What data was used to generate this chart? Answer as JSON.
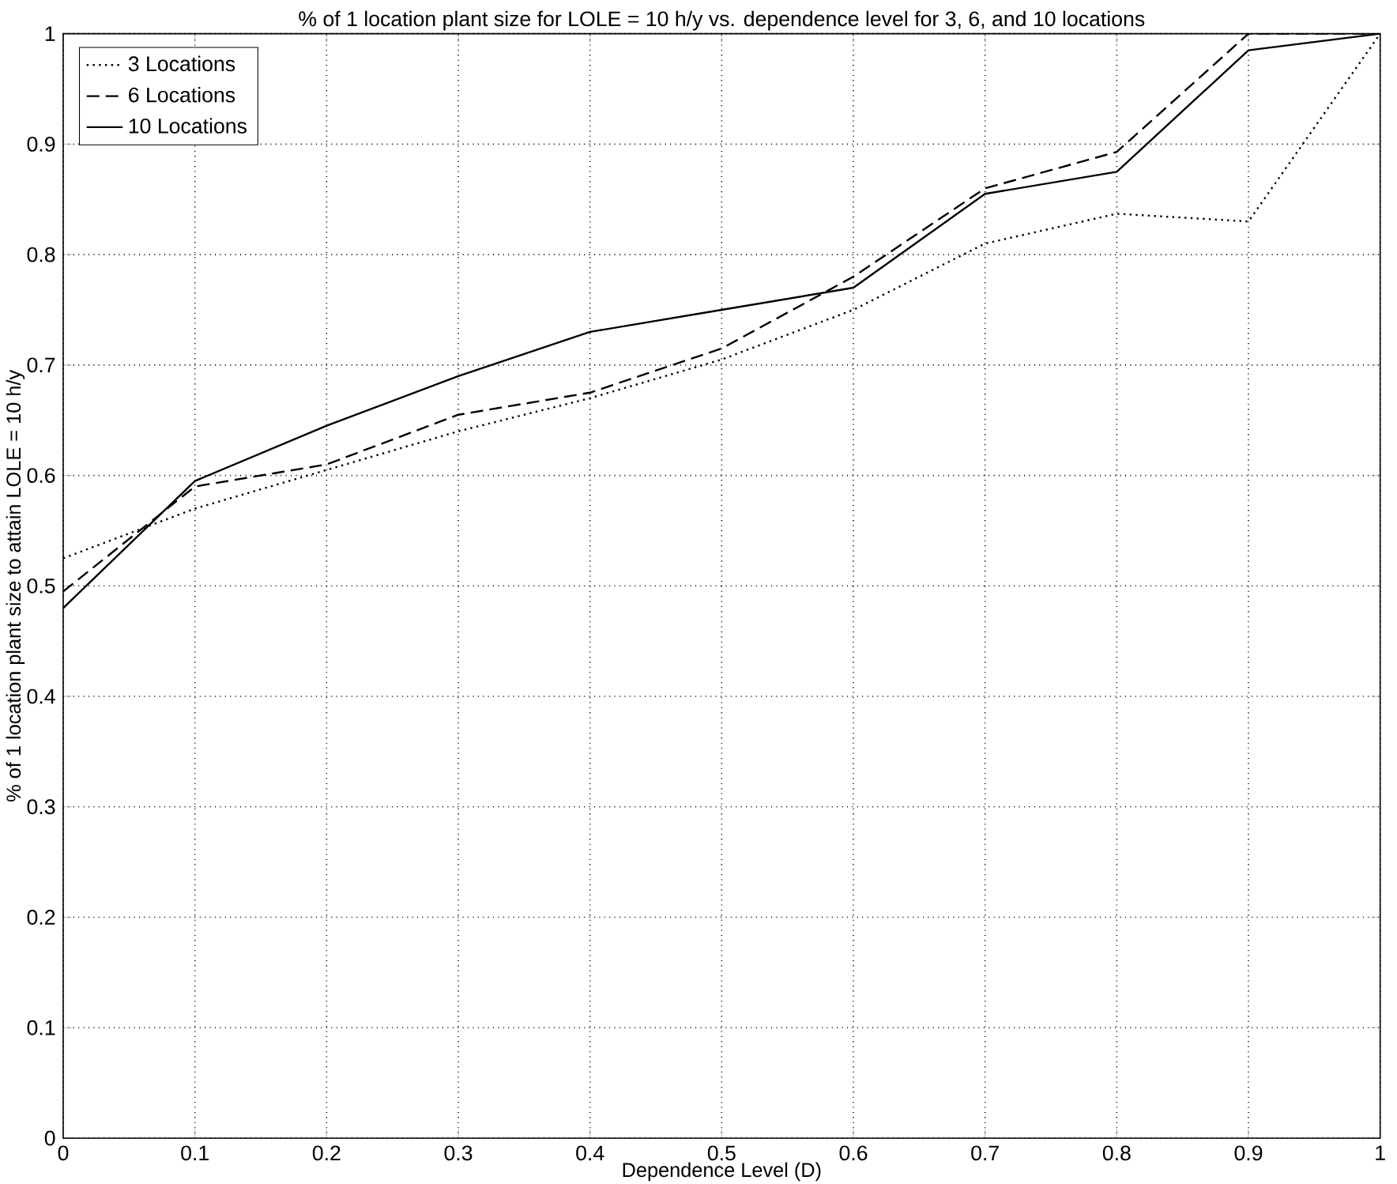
{
  "chart_data": {
    "type": "line",
    "title": "% of 1 location plant size for LOLE = 10 h/y vs. dependence level for 3, 6, and 10 locations",
    "xlabel": "Dependence Level (D)",
    "ylabel": "% of 1 location plant size to attain LOLE = 10 h/y",
    "x": [
      0,
      0.1,
      0.2,
      0.3,
      0.4,
      0.5,
      0.6,
      0.7,
      0.8,
      0.9,
      1.0
    ],
    "series": [
      {
        "name": "3 Locations",
        "color": "#000000",
        "line_style": "dotted",
        "values": [
          0.525,
          0.57,
          0.605,
          0.64,
          0.67,
          0.705,
          0.75,
          0.81,
          0.837,
          0.83,
          1.0
        ]
      },
      {
        "name": "6 Locations",
        "color": "#000000",
        "line_style": "dashed",
        "values": [
          0.495,
          0.59,
          0.61,
          0.655,
          0.675,
          0.715,
          0.78,
          0.86,
          0.893,
          1.0,
          1.0
        ]
      },
      {
        "name": "10 Locations",
        "color": "#000000",
        "line_style": "solid",
        "values": [
          0.48,
          0.595,
          0.645,
          0.69,
          0.73,
          0.75,
          0.77,
          0.855,
          0.875,
          0.985,
          1.0
        ]
      }
    ],
    "xlim": [
      0,
      1
    ],
    "ylim": [
      0,
      1
    ],
    "xticks": [
      0,
      0.1,
      0.2,
      0.3,
      0.4,
      0.5,
      0.6,
      0.7,
      0.8,
      0.9,
      1
    ],
    "yticks": [
      0,
      0.1,
      0.2,
      0.3,
      0.4,
      0.5,
      0.6,
      0.7,
      0.8,
      0.9,
      1
    ],
    "grid": true,
    "legend": "top left",
    "marker": "none"
  }
}
